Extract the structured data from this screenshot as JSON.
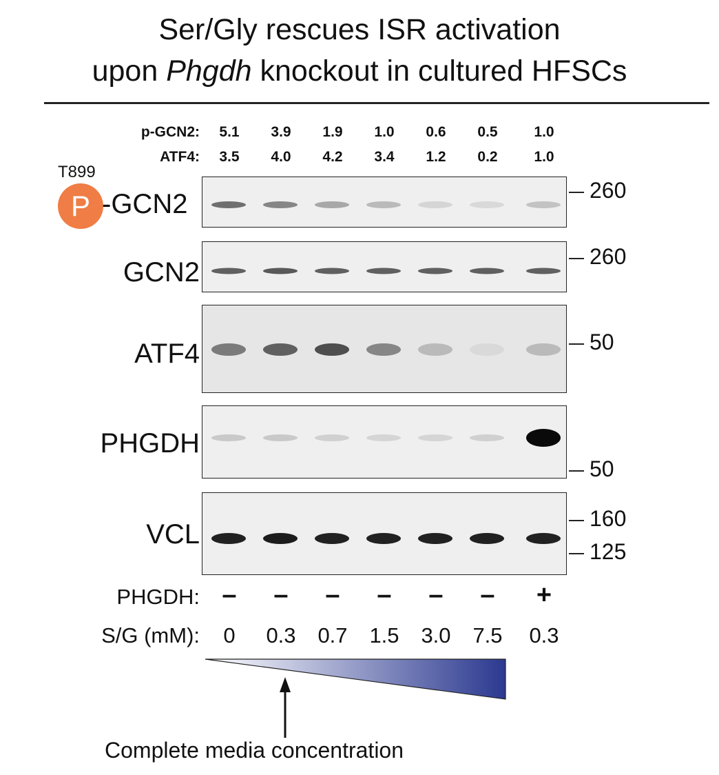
{
  "title": {
    "line1": "Ser/Gly rescues ISR activation",
    "line2_pre": "upon ",
    "line2_italic": "Phgdh",
    "line2_post": " knockout in cultured HFSCs"
  },
  "quantification": {
    "pgcn2_label": "p-GCN2:",
    "atf4_label": "ATF4:",
    "pgcn2_values": [
      "5.1",
      "3.9",
      "1.9",
      "1.0",
      "0.6",
      "0.5",
      "1.0"
    ],
    "atf4_values": [
      "3.5",
      "4.0",
      "4.2",
      "3.4",
      "1.2",
      "0.2",
      "1.0"
    ]
  },
  "phospho": {
    "site": "T899",
    "symbol": "P",
    "suffix": "-GCN2"
  },
  "blots": [
    {
      "name": "",
      "markers": [
        "260"
      ]
    },
    {
      "name": "GCN2",
      "markers": [
        "260"
      ]
    },
    {
      "name": "ATF4",
      "markers": [
        "50"
      ]
    },
    {
      "name": "PHGDH",
      "markers": [
        "50"
      ]
    },
    {
      "name": "VCL",
      "markers": [
        "160",
        "125"
      ]
    }
  ],
  "band_intensity": {
    "pgcn2": [
      0.55,
      0.45,
      0.3,
      0.22,
      0.1,
      0.08,
      0.18
    ],
    "gcn2": [
      0.62,
      0.65,
      0.62,
      0.62,
      0.62,
      0.62,
      0.62
    ],
    "atf4": [
      0.5,
      0.62,
      0.7,
      0.45,
      0.22,
      0.08,
      0.22
    ],
    "phgdh": [
      0.15,
      0.15,
      0.12,
      0.1,
      0.1,
      0.12,
      1.0
    ],
    "vcl": [
      0.9,
      0.92,
      0.9,
      0.9,
      0.9,
      0.9,
      0.9
    ]
  },
  "conditions": {
    "phgdh_label": "PHGDH:",
    "phgdh_signs": [
      "–",
      "–",
      "–",
      "–",
      "–",
      "–",
      "+"
    ],
    "sg_label": "S/G (mM):",
    "sg_values": [
      "0",
      "0.3",
      "0.7",
      "1.5",
      "3.0",
      "7.5",
      "0.3"
    ]
  },
  "gradient": {
    "start_color": "#ffffff",
    "end_color": "#2b3990"
  },
  "annotation": {
    "text": "Complete media concentration"
  },
  "colors": {
    "phospho_badge": "#ef7d45"
  }
}
